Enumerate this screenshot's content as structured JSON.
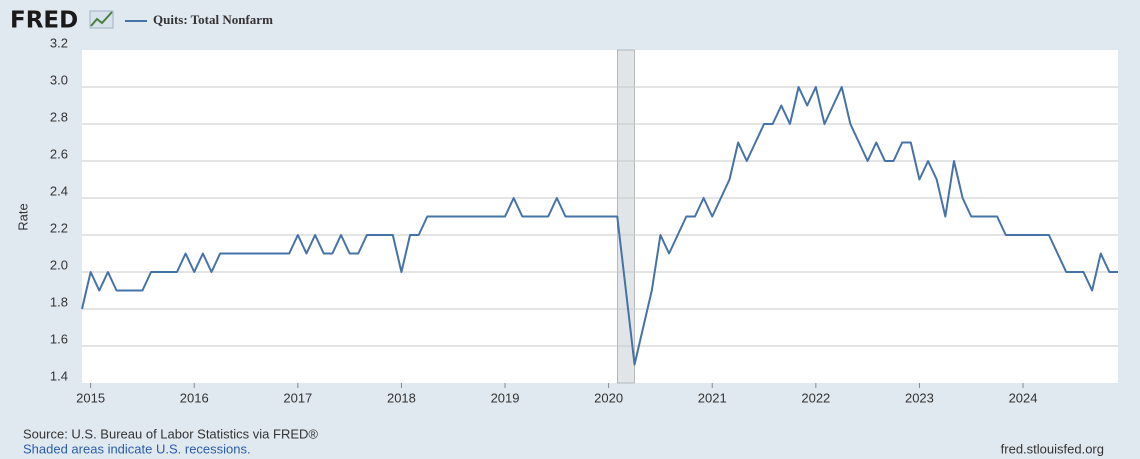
{
  "chart_data": {
    "type": "line",
    "logo": "FRED",
    "ylabel": "Rate",
    "source": "Source: U.S. Bureau of Labor Statistics via FRED®",
    "recession_note": "Shaded areas indicate U.S. recessions.",
    "site": "fred.stlouisfed.org",
    "recessions": [
      {
        "start": "2020-02",
        "end": "2020-04"
      }
    ],
    "x": [
      "2014-12",
      "2015-01",
      "2015-02",
      "2015-03",
      "2015-04",
      "2015-05",
      "2015-06",
      "2015-07",
      "2015-08",
      "2015-09",
      "2015-10",
      "2015-11",
      "2015-12",
      "2016-01",
      "2016-02",
      "2016-03",
      "2016-04",
      "2016-05",
      "2016-06",
      "2016-07",
      "2016-08",
      "2016-09",
      "2016-10",
      "2016-11",
      "2016-12",
      "2017-01",
      "2017-02",
      "2017-03",
      "2017-04",
      "2017-05",
      "2017-06",
      "2017-07",
      "2017-08",
      "2017-09",
      "2017-10",
      "2017-11",
      "2017-12",
      "2018-01",
      "2018-02",
      "2018-03",
      "2018-04",
      "2018-05",
      "2018-06",
      "2018-07",
      "2018-08",
      "2018-09",
      "2018-10",
      "2018-11",
      "2018-12",
      "2019-01",
      "2019-02",
      "2019-03",
      "2019-04",
      "2019-05",
      "2019-06",
      "2019-07",
      "2019-08",
      "2019-09",
      "2019-10",
      "2019-11",
      "2019-12",
      "2020-01",
      "2020-02",
      "2020-03",
      "2020-04",
      "2020-05",
      "2020-06",
      "2020-07",
      "2020-08",
      "2020-09",
      "2020-10",
      "2020-11",
      "2020-12",
      "2021-01",
      "2021-02",
      "2021-03",
      "2021-04",
      "2021-05",
      "2021-06",
      "2021-07",
      "2021-08",
      "2021-09",
      "2021-10",
      "2021-11",
      "2021-12",
      "2022-01",
      "2022-02",
      "2022-03",
      "2022-04",
      "2022-05",
      "2022-06",
      "2022-07",
      "2022-08",
      "2022-09",
      "2022-10",
      "2022-11",
      "2022-12",
      "2023-01",
      "2023-02",
      "2023-03",
      "2023-04",
      "2023-05",
      "2023-06",
      "2023-07",
      "2023-08",
      "2023-09",
      "2023-10",
      "2023-11",
      "2023-12",
      "2024-01",
      "2024-02",
      "2024-03",
      "2024-04",
      "2024-05",
      "2024-06",
      "2024-07",
      "2024-08",
      "2024-09",
      "2024-10",
      "2024-11",
      "2024-12"
    ],
    "series": [
      {
        "name": "Quits: Total Nonfarm",
        "color": "#4572a7",
        "values": [
          1.8,
          2.0,
          1.9,
          2.0,
          1.9,
          1.9,
          1.9,
          1.9,
          2.0,
          2.0,
          2.0,
          2.0,
          2.1,
          2.0,
          2.1,
          2.0,
          2.1,
          2.1,
          2.1,
          2.1,
          2.1,
          2.1,
          2.1,
          2.1,
          2.1,
          2.2,
          2.1,
          2.2,
          2.1,
          2.1,
          2.2,
          2.1,
          2.1,
          2.2,
          2.2,
          2.2,
          2.2,
          2.0,
          2.2,
          2.2,
          2.3,
          2.3,
          2.3,
          2.3,
          2.3,
          2.3,
          2.3,
          2.3,
          2.3,
          2.3,
          2.4,
          2.3,
          2.3,
          2.3,
          2.3,
          2.4,
          2.3,
          2.3,
          2.3,
          2.3,
          2.3,
          2.3,
          2.3,
          1.9,
          1.5,
          1.7,
          1.9,
          2.2,
          2.1,
          2.2,
          2.3,
          2.3,
          2.4,
          2.3,
          2.4,
          2.5,
          2.7,
          2.6,
          2.7,
          2.8,
          2.8,
          2.9,
          2.8,
          3.0,
          2.9,
          3.0,
          2.8,
          2.9,
          3.0,
          2.8,
          2.7,
          2.6,
          2.7,
          2.6,
          2.6,
          2.7,
          2.7,
          2.5,
          2.6,
          2.5,
          2.3,
          2.6,
          2.4,
          2.3,
          2.3,
          2.3,
          2.3,
          2.2,
          2.2,
          2.2,
          2.2,
          2.2,
          2.2,
          2.1,
          2.0,
          2.0,
          2.0,
          1.9,
          2.1,
          2.0,
          2.0
        ]
      }
    ],
    "xlim": [
      "2014-12",
      "2024-12"
    ],
    "xticks": [
      2015,
      2016,
      2017,
      2018,
      2019,
      2020,
      2021,
      2022,
      2023,
      2024
    ],
    "ylim": [
      1.4,
      3.2
    ],
    "yticks": [
      {
        "value": 1.4,
        "label": "1.4"
      },
      {
        "value": 1.6,
        "label": "1.6"
      },
      {
        "value": 1.8,
        "label": "1.8"
      },
      {
        "value": 2.0,
        "label": "2.0"
      },
      {
        "value": 2.2,
        "label": "2.2"
      },
      {
        "value": 2.4,
        "label": "2.4"
      },
      {
        "value": 2.6,
        "label": "2.6"
      },
      {
        "value": 2.8,
        "label": "2.8"
      },
      {
        "value": 3.0,
        "label": "3.0"
      },
      {
        "value": 3.2,
        "label": "3.2"
      }
    ],
    "grid": true
  }
}
